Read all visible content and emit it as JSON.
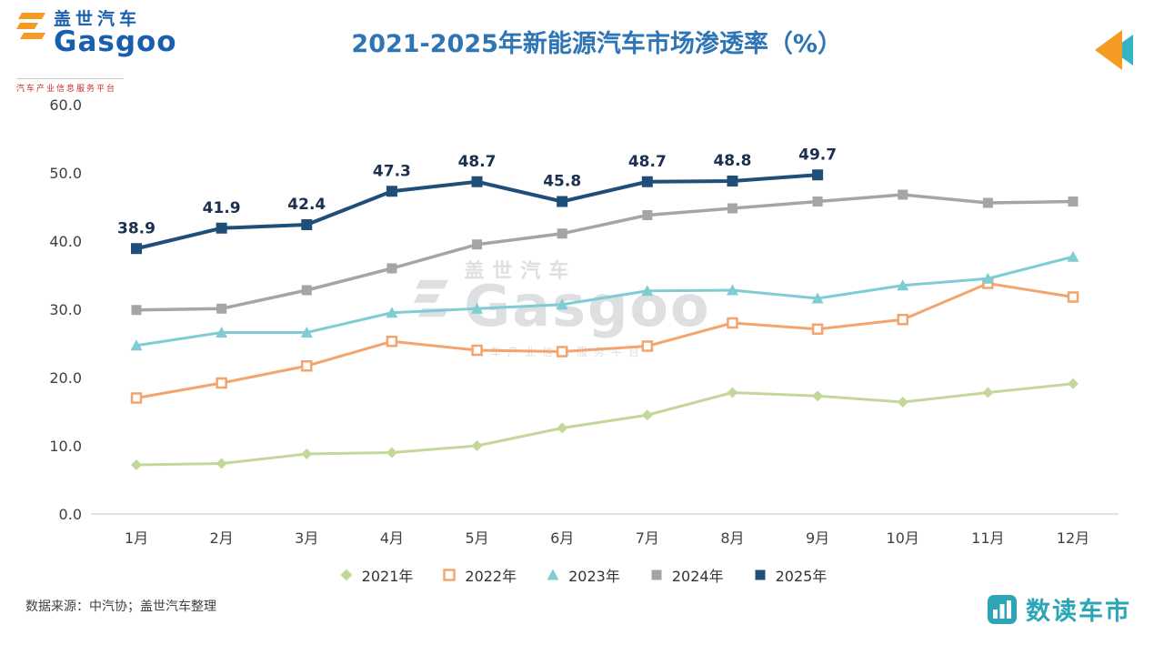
{
  "header": {
    "title": "2021-2025年新能源汽车市场渗透率（%）",
    "logo": {
      "cn": "盖世汽车",
      "en": "Gasgoo",
      "tagline": "汽车产业信息服务平台"
    }
  },
  "watermark": {
    "cn": "盖世汽车",
    "en": "Gasgoo",
    "tagline": "汽车产业信息服务平台"
  },
  "footer": {
    "source": "数据来源：中汽协；盖世汽车整理",
    "brand": "数读车市"
  },
  "colors": {
    "title": "#2e75b6",
    "brand_teal": "#2aa6b6",
    "logo_blue": "#1a5fae",
    "logo_orange": "#f59a23"
  },
  "chart_data": {
    "type": "line",
    "title": "2021-2025年新能源汽车市场渗透率（%）",
    "categories": [
      "1月",
      "2月",
      "3月",
      "4月",
      "5月",
      "6月",
      "7月",
      "8月",
      "9月",
      "10月",
      "11月",
      "12月"
    ],
    "xlabel": "",
    "ylabel": "",
    "ylim": [
      0,
      60
    ],
    "yticks": [
      0,
      10,
      20,
      30,
      40,
      50,
      60
    ],
    "grid": false,
    "legend_position": "bottom",
    "series": [
      {
        "name": "2021年",
        "color": "#c4d79b",
        "marker": "diamond",
        "width": 3,
        "marker_size": 10,
        "values": [
          7.2,
          7.4,
          8.8,
          9.0,
          10.0,
          12.6,
          14.5,
          17.8,
          17.3,
          16.4,
          17.8,
          19.1
        ]
      },
      {
        "name": "2022年",
        "color": "#f4a46d",
        "marker": "square",
        "hollow": true,
        "width": 3,
        "marker_size": 10,
        "values": [
          17.0,
          19.2,
          21.7,
          25.3,
          24.0,
          23.8,
          24.6,
          28.0,
          27.1,
          28.5,
          33.8,
          31.8
        ]
      },
      {
        "name": "2023年",
        "color": "#7fccd4",
        "marker": "triangle",
        "width": 3,
        "marker_size": 11,
        "values": [
          24.7,
          26.6,
          26.6,
          29.5,
          30.1,
          30.7,
          32.7,
          32.8,
          31.6,
          33.5,
          34.5,
          37.7
        ]
      },
      {
        "name": "2024年",
        "color": "#a5a5a5",
        "marker": "square",
        "width": 3.5,
        "marker_size": 11,
        "values": [
          29.9,
          30.1,
          32.8,
          36.0,
          39.5,
          41.1,
          43.8,
          44.8,
          45.8,
          46.8,
          45.6,
          45.8
        ]
      },
      {
        "name": "2025年",
        "color": "#1f4e79",
        "marker": "square",
        "width": 4,
        "marker_size": 12,
        "show_labels": true,
        "values": [
          38.9,
          41.9,
          42.4,
          47.3,
          48.7,
          45.8,
          48.7,
          48.8,
          49.7
        ]
      }
    ]
  }
}
